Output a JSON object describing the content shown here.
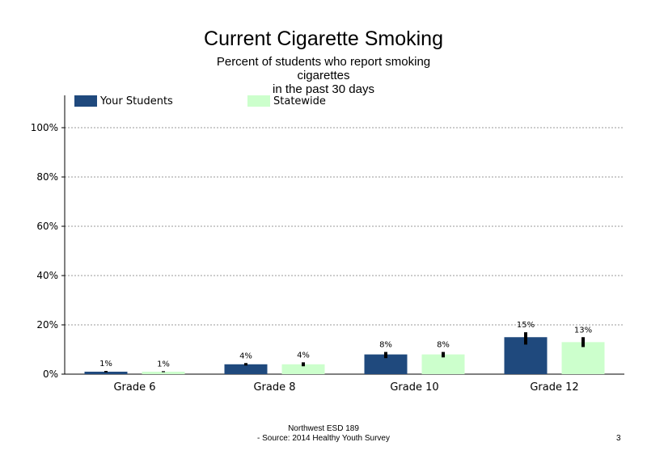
{
  "header": {
    "title": "Current Cigarette Smoking",
    "subtitle_lines": [
      "Percent of students who report smoking",
      "cigarettes",
      "in the past 30 days"
    ]
  },
  "legend": {
    "items": [
      {
        "label": "Your Students",
        "color": "#1f497d"
      },
      {
        "label": "Statewide",
        "color": "#ccffcc"
      }
    ]
  },
  "footer": {
    "line1": "Northwest ESD  189",
    "line2": "- Source: 2014 Healthy  Youth Survey",
    "page_number": "3"
  },
  "chart_data": {
    "type": "bar",
    "categories": [
      "Grade 6",
      "Grade 8",
      "Grade 10",
      "Grade 12"
    ],
    "series": [
      {
        "name": "Your Students",
        "color": "#1f497d",
        "values": [
          1,
          4,
          8,
          15
        ],
        "labels": [
          "1%",
          "4%",
          "8%",
          "15%"
        ],
        "error_low": [
          0.7,
          3.5,
          6.5,
          12
        ],
        "error_high": [
          1.3,
          4.5,
          9.0,
          17
        ]
      },
      {
        "name": "Statewide",
        "color": "#ccffcc",
        "values": [
          1,
          4,
          8,
          13
        ],
        "labels": [
          "1%",
          "4%",
          "8%",
          "13%"
        ],
        "error_low": [
          0.8,
          3.2,
          6.8,
          11
        ],
        "error_high": [
          1.2,
          4.8,
          9.0,
          15
        ]
      }
    ],
    "yticks": [
      "0%",
      "20%",
      "40%",
      "60%",
      "80%",
      "100%"
    ],
    "ytick_values": [
      0,
      20,
      40,
      60,
      80,
      100
    ],
    "ylim": [
      0,
      112
    ],
    "grid": "dotted horizontal",
    "legend_position": "top"
  }
}
